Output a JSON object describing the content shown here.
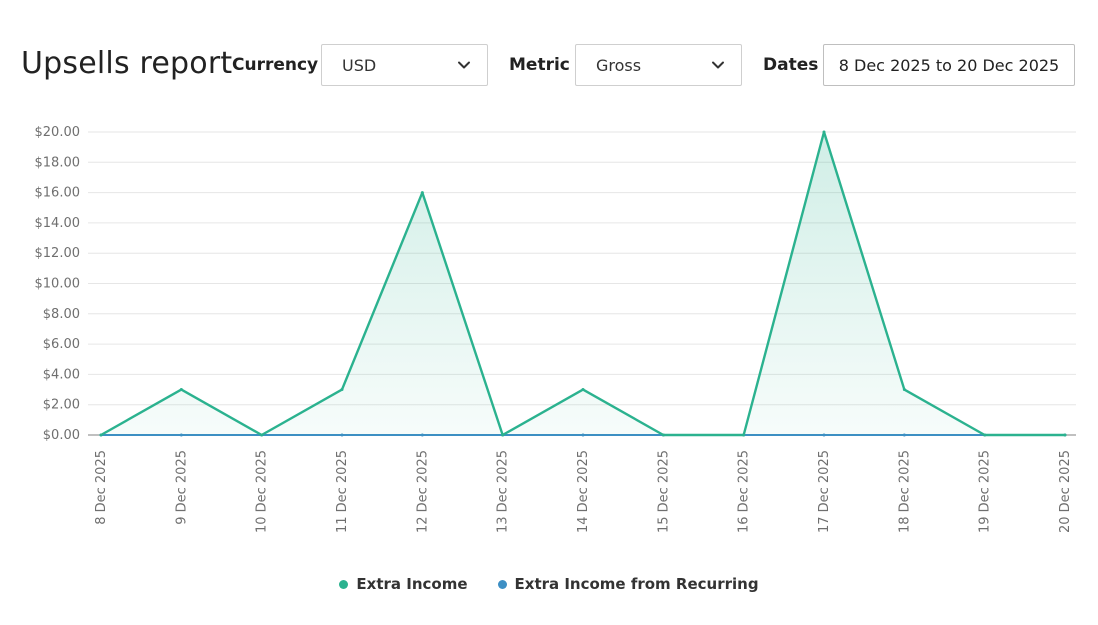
{
  "header": {
    "title": "Upsells report",
    "currency_label": "Currency",
    "currency_value": "USD",
    "metric_label": "Metric",
    "metric_value": "Gross",
    "dates_label": "Dates",
    "dates_value": "8 Dec 2025 to 20 Dec 2025"
  },
  "chart_data": {
    "type": "area",
    "x": [
      "8 Dec 2025",
      "9 Dec 2025",
      "10 Dec 2025",
      "11 Dec 2025",
      "12 Dec 2025",
      "13 Dec 2025",
      "14 Dec 2025",
      "15 Dec 2025",
      "16 Dec 2025",
      "17 Dec 2025",
      "18 Dec 2025",
      "19 Dec 2025",
      "20 Dec 2025"
    ],
    "y_ticks": [
      "$0.00",
      "$2.00",
      "$4.00",
      "$6.00",
      "$8.00",
      "$10.00",
      "$12.00",
      "$14.00",
      "$16.00",
      "$18.00",
      "$20.00"
    ],
    "ylim": [
      0,
      20
    ],
    "grid": true,
    "legend": "bottom",
    "series": [
      {
        "name": "Extra Income",
        "color": "#2bb28f",
        "values": [
          0,
          3,
          0,
          3,
          16,
          0,
          3,
          0,
          0,
          20,
          3,
          0,
          0
        ]
      },
      {
        "name": "Extra Income from Recurring",
        "color": "#3d8fc4",
        "values": [
          0,
          0,
          0,
          0,
          0,
          0,
          0,
          0,
          0,
          0,
          0,
          0,
          0
        ]
      }
    ]
  }
}
